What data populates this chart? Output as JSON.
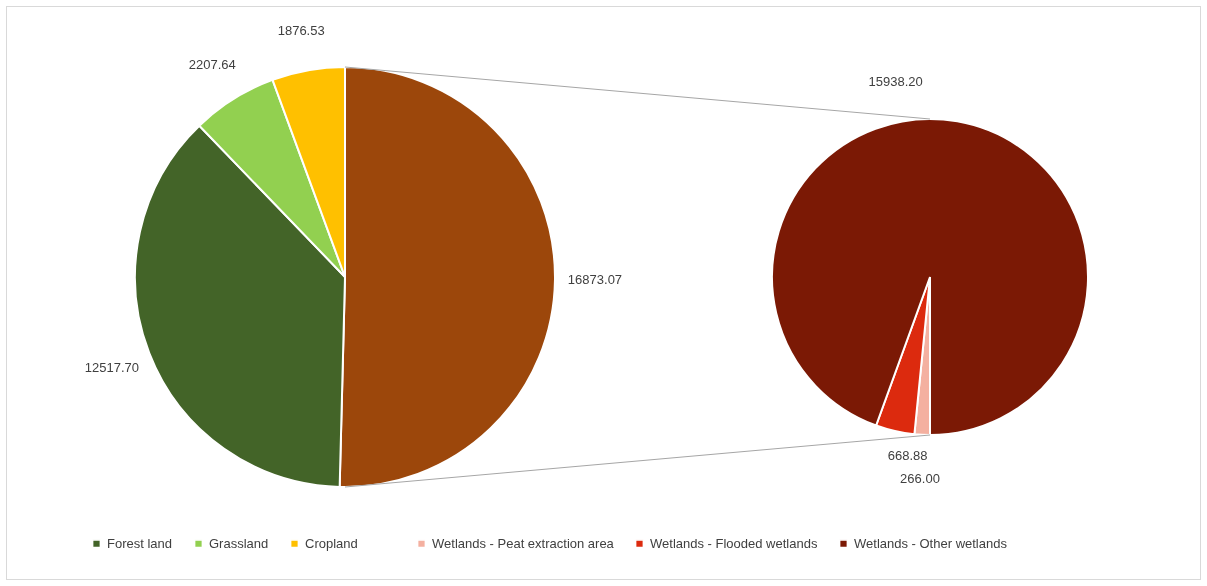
{
  "chart_data": [
    {
      "type": "pie",
      "categories": [
        null,
        "Forest land",
        "Grassland",
        "Cropland"
      ],
      "values": [
        16873.07,
        12517.7,
        2207.64,
        1876.53
      ],
      "colors": [
        "#9c470b",
        "#436428",
        "#92d050",
        "#ffc000"
      ],
      "value_labels": [
        "16873.07",
        "12517.70",
        "2207.64",
        "1876.53"
      ],
      "legend": "bottom"
    },
    {
      "type": "pie",
      "categories": [
        "Wetlands - Peat extraction area",
        "Wetlands - Flooded wetlands",
        "Wetlands - Other wetlands"
      ],
      "values": [
        266.0,
        668.88,
        15938.2
      ],
      "colors": [
        "#f4b0a0",
        "#dc2a0e",
        "#7b1905"
      ],
      "value_labels": [
        "266.00",
        "668.88",
        "15938.20"
      ],
      "legend": "bottom"
    }
  ]
}
